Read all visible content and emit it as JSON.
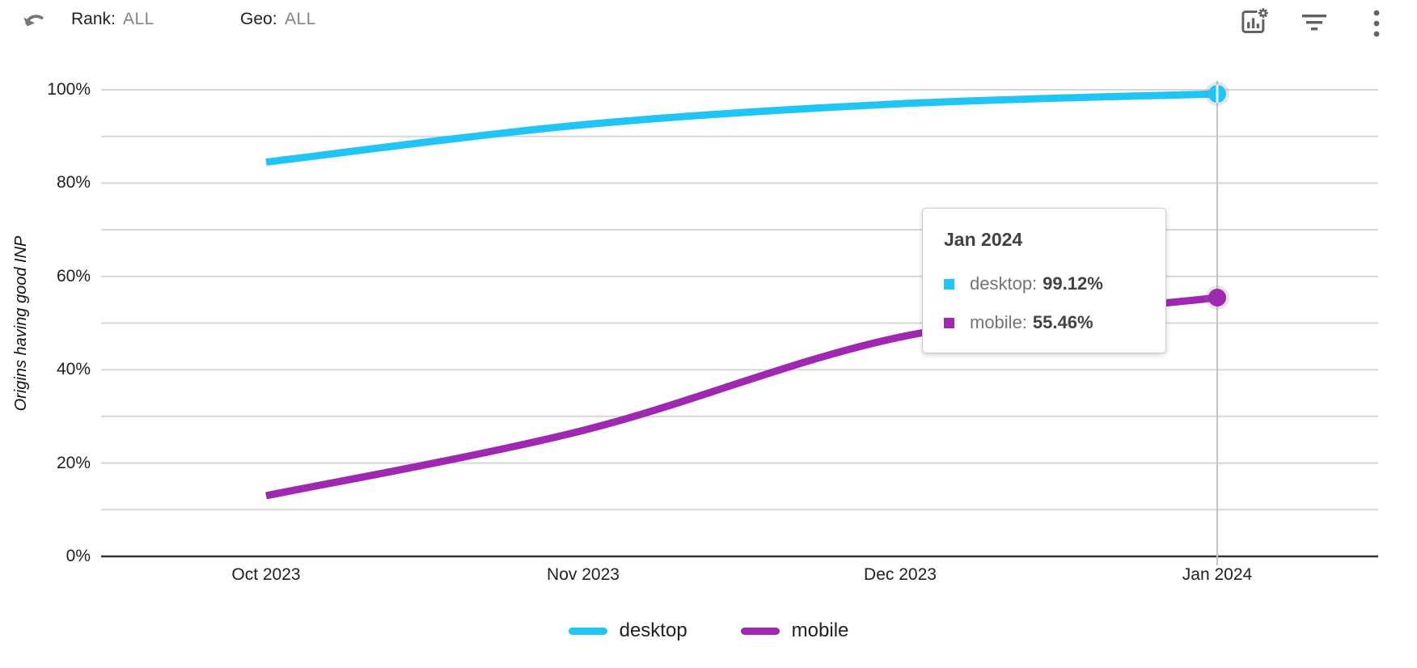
{
  "header": {
    "rank_label": "Rank:",
    "rank_value": "ALL",
    "geo_label": "Geo:",
    "geo_value": "ALL",
    "icons": [
      "undo-icon",
      "chart-settings-icon",
      "filter-icon",
      "more-menu-icon"
    ]
  },
  "chart_data": {
    "type": "line",
    "x": [
      "Oct 2023",
      "Nov 2023",
      "Dec 2023",
      "Jan 2024"
    ],
    "series": [
      {
        "name": "desktop",
        "color": "#20C5F5",
        "values": [
          84.5,
          92.5,
          97.0,
          99.12
        ]
      },
      {
        "name": "mobile",
        "color": "#9E28B0",
        "values": [
          13.0,
          27.0,
          47.0,
          55.46
        ]
      }
    ],
    "ylabel": "Origins having good INP",
    "xlabel": "",
    "ylim": [
      0,
      100
    ],
    "ytick_labels": [
      "100%",
      "80%",
      "60%",
      "40%",
      "20%",
      "0%"
    ],
    "grid": "horizontal minor gridlines every 10%",
    "legend_position": "bottom",
    "smooth": true,
    "highlighted_point": "Jan 2024",
    "gridline_color": "#D8D8D8",
    "axis_color": "#333333",
    "crosshair_color": "#C4C4C4"
  },
  "tooltip": {
    "title": "Jan 2024",
    "rows": [
      {
        "series": "desktop",
        "label": "desktop:",
        "value": "99.12%"
      },
      {
        "series": "mobile",
        "label": "mobile:",
        "value": "55.46%"
      }
    ]
  },
  "legend": [
    {
      "label": "desktop"
    },
    {
      "label": "mobile"
    }
  ]
}
